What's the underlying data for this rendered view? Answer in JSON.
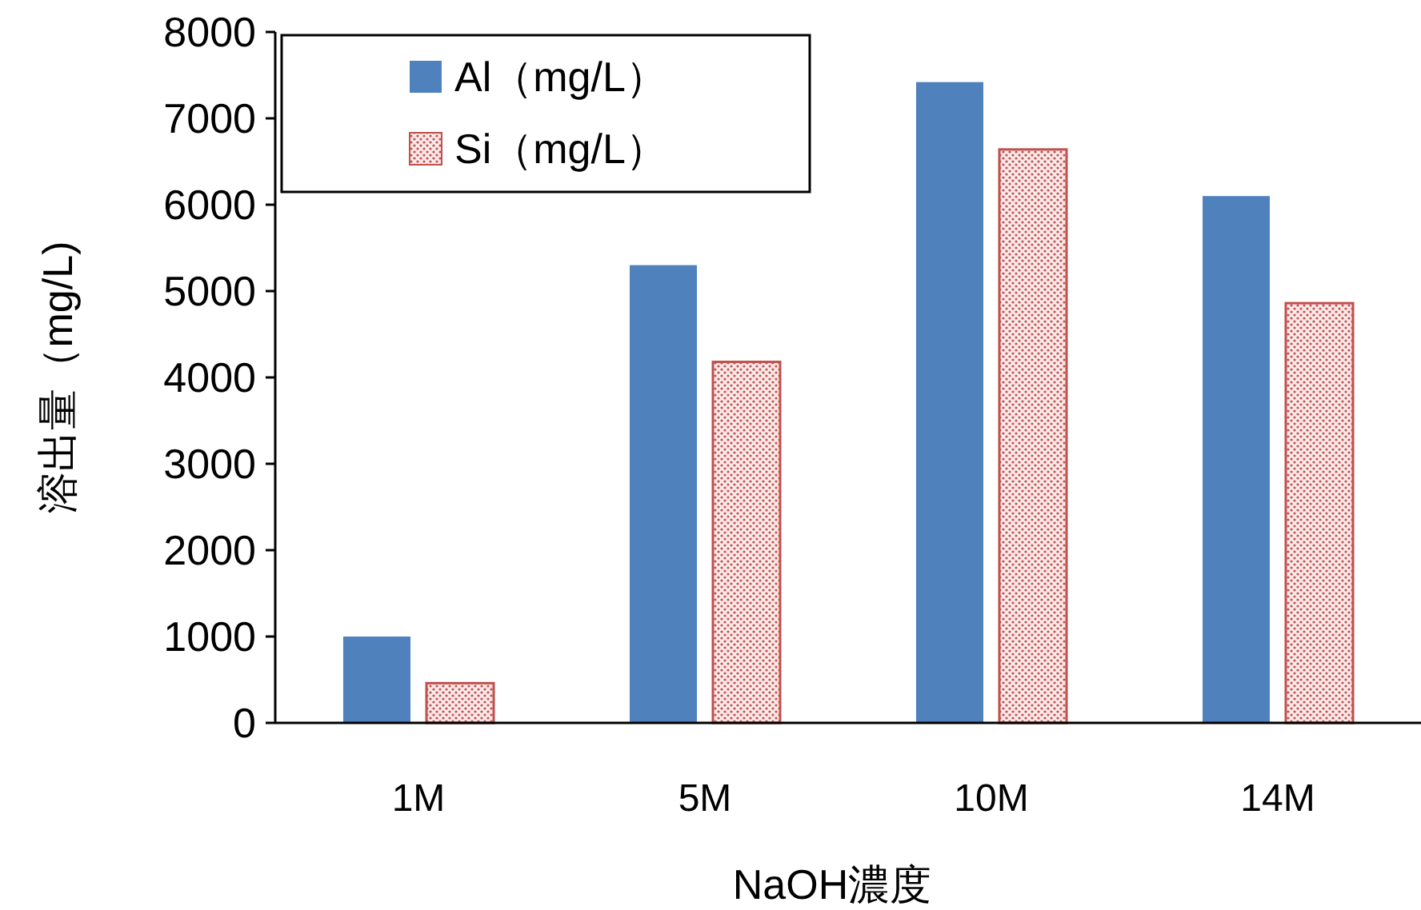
{
  "chart_data": {
    "type": "bar",
    "xlabel": "NaOH濃度",
    "ylabel": "溶出量（mg/L)",
    "categories": [
      "1M",
      "5M",
      "10M",
      "14M"
    ],
    "series": [
      {
        "name": "Al（mg/L）",
        "color": "#4f81bd",
        "values": [
          1000,
          5300,
          7420,
          6100
        ]
      },
      {
        "name": "Si（mg/L）",
        "color": "#c0504d",
        "values": [
          460,
          4180,
          6640,
          4860
        ]
      }
    ],
    "ylim": [
      0,
      8000
    ],
    "yticks": [
      0,
      1000,
      2000,
      3000,
      4000,
      5000,
      6000,
      7000,
      8000
    ],
    "legend": "top left"
  }
}
